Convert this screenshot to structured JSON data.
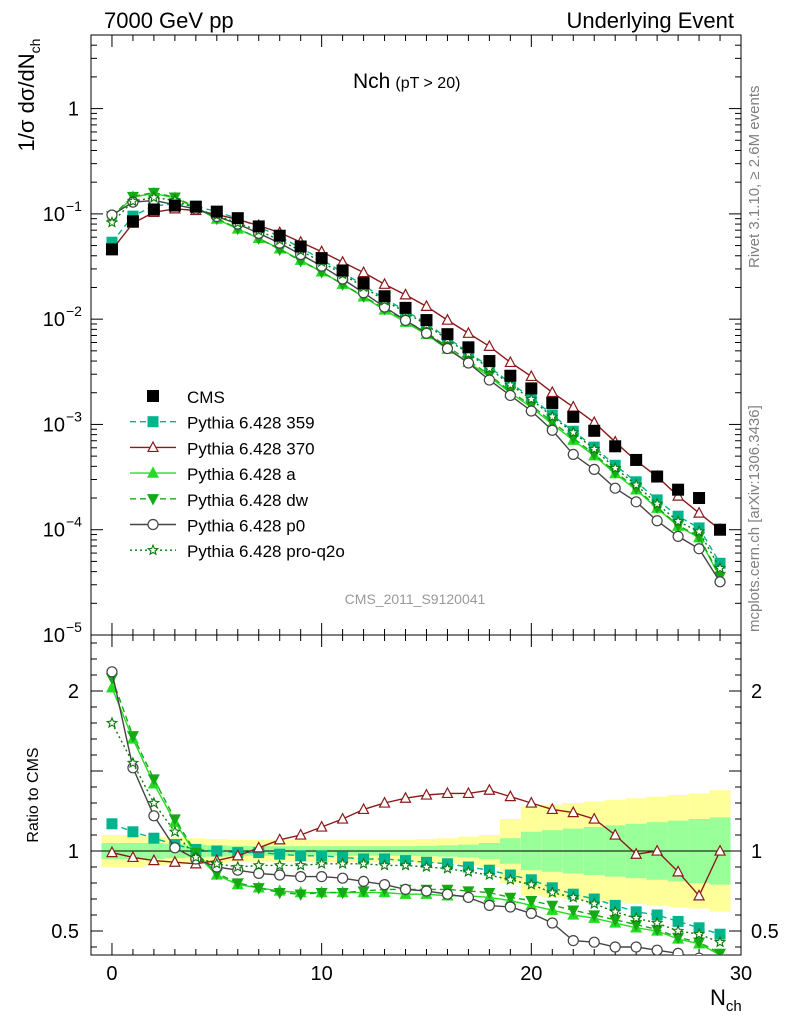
{
  "header": {
    "left": "7000 GeV pp",
    "right": "Underlying Event"
  },
  "side_text": {
    "rivet": "Rivet 3.1.10, ≥ 2.6M events",
    "mcplots": "mcplots.cern.ch [arXiv:1306.3436]"
  },
  "chart_data": {
    "type": "line",
    "title_main": "Nch",
    "title_sub": "(pT > 20)",
    "watermark": "CMS_2011_S9120041",
    "xlabel": "N",
    "xlabel_sub": "ch",
    "ylabel_main": "1/σ dσ/dN",
    "ylabel_sub": "ch",
    "ylabel_ratio": "Ratio to CMS",
    "log_y": true,
    "xlim": [
      -1,
      30
    ],
    "ylim_main": [
      1e-05,
      5
    ],
    "ylim_ratio": [
      0.35,
      2.35
    ],
    "x_ticks": [
      "0",
      "10",
      "20",
      "30"
    ],
    "y_ticks_main": [
      {
        "v": 1e-05,
        "m": "10",
        "e": "−5"
      },
      {
        "v": 0.0001,
        "m": "10",
        "e": "−4"
      },
      {
        "v": 0.001,
        "m": "10",
        "e": "−3"
      },
      {
        "v": 0.01,
        "m": "10",
        "e": "−2"
      },
      {
        "v": 0.1,
        "m": "10",
        "e": "−1"
      },
      {
        "v": 1,
        "m": "1",
        "e": ""
      }
    ],
    "y_ticks_ratio": [
      "0.5",
      "1",
      "2"
    ],
    "ratio_band": {
      "x": [
        -0.5,
        0.5,
        1.5,
        2.5,
        3.5,
        4.5,
        5.5,
        6.5,
        7.5,
        8.5,
        9.5,
        10.5,
        11.5,
        12.5,
        13.5,
        14.5,
        15.5,
        16.5,
        17.5,
        18.5,
        19.5,
        20.5,
        21.5,
        22.5,
        23.5,
        24.5,
        25.5,
        26.5,
        27.5,
        28.5,
        29.5
      ],
      "stat": [
        0.05,
        0.05,
        0.05,
        0.045,
        0.04,
        0.035,
        0.032,
        0.03,
        0.03,
        0.03,
        0.03,
        0.03,
        0.03,
        0.03,
        0.03,
        0.032,
        0.035,
        0.04,
        0.05,
        0.08,
        0.12,
        0.13,
        0.14,
        0.15,
        0.16,
        0.17,
        0.18,
        0.19,
        0.2,
        0.21
      ],
      "total": [
        0.1,
        0.1,
        0.09,
        0.085,
        0.08,
        0.075,
        0.07,
        0.07,
        0.07,
        0.07,
        0.07,
        0.07,
        0.07,
        0.07,
        0.07,
        0.075,
        0.08,
        0.09,
        0.1,
        0.2,
        0.28,
        0.29,
        0.3,
        0.31,
        0.32,
        0.33,
        0.34,
        0.35,
        0.36,
        0.38
      ]
    },
    "cms": {
      "name": "CMS",
      "x": [
        0,
        1,
        2,
        3,
        4,
        5,
        6,
        7,
        8,
        9,
        10,
        11,
        12,
        13,
        14,
        15,
        16,
        17,
        18,
        19,
        20,
        21,
        22,
        23,
        24,
        25,
        26,
        27,
        28,
        29
      ],
      "y": [
        0.046,
        0.085,
        0.11,
        0.12,
        0.117,
        0.105,
        0.091,
        0.076,
        0.062,
        0.049,
        0.038,
        0.029,
        0.022,
        0.0165,
        0.0128,
        0.0098,
        0.0072,
        0.0054,
        0.004,
        0.0029,
        0.0022,
        0.0016,
        0.00118,
        0.00087,
        0.00062,
        0.00046,
        0.00032,
        0.00024,
        0.0002,
        0.0001
      ]
    },
    "series": [
      {
        "name": "Pythia 6.428 359",
        "color": "#00b48c",
        "dash": "6,4",
        "marker": "square",
        "filled": true,
        "ratio": [
          1.17,
          1.12,
          1.08,
          1.04,
          1.01,
          1.0,
          0.99,
          0.99,
          0.98,
          0.97,
          0.97,
          0.96,
          0.95,
          0.95,
          0.94,
          0.93,
          0.92,
          0.9,
          0.88,
          0.85,
          0.82,
          0.77,
          0.73,
          0.7,
          0.66,
          0.62,
          0.6,
          0.56,
          0.52,
          0.48
        ]
      },
      {
        "name": "Pythia 6.428 370",
        "color": "#8b1a1a",
        "dash": "",
        "marker": "triangle",
        "filled": false,
        "ratio": [
          0.99,
          0.96,
          0.94,
          0.93,
          0.92,
          0.94,
          0.97,
          1.02,
          1.07,
          1.1,
          1.15,
          1.2,
          1.26,
          1.3,
          1.33,
          1.35,
          1.36,
          1.36,
          1.38,
          1.34,
          1.3,
          1.26,
          1.24,
          1.2,
          1.1,
          0.98,
          1.0,
          0.87,
          0.72,
          1.0
        ]
      },
      {
        "name": "Pythia 6.428 a",
        "color": "#22dd22",
        "dash": "",
        "marker": "triangle",
        "filled": true,
        "ratio": [
          2.02,
          1.7,
          1.42,
          1.18,
          0.98,
          0.85,
          0.79,
          0.77,
          0.75,
          0.74,
          0.74,
          0.74,
          0.74,
          0.74,
          0.73,
          0.73,
          0.72,
          0.72,
          0.71,
          0.69,
          0.66,
          0.63,
          0.6,
          0.58,
          0.55,
          0.52,
          0.5,
          0.45,
          0.42,
          0.35
        ]
      },
      {
        "name": "Pythia 6.428 dw",
        "color": "#15aa15",
        "dash": "6,4",
        "marker": "triangle-down",
        "filled": true,
        "ratio": [
          2.08,
          1.72,
          1.45,
          1.2,
          0.99,
          0.86,
          0.8,
          0.77,
          0.74,
          0.73,
          0.74,
          0.74,
          0.75,
          0.76,
          0.76,
          0.76,
          0.76,
          0.75,
          0.74,
          0.71,
          0.69,
          0.66,
          0.63,
          0.6,
          0.57,
          0.54,
          0.51,
          0.46,
          0.43,
          0.36
        ]
      },
      {
        "name": "Pythia 6.428 p0",
        "color": "#444444",
        "dash": "",
        "marker": "circle",
        "filled": false,
        "ratio": [
          2.12,
          1.52,
          1.22,
          1.02,
          0.95,
          0.9,
          0.88,
          0.86,
          0.85,
          0.84,
          0.84,
          0.83,
          0.81,
          0.79,
          0.76,
          0.75,
          0.73,
          0.71,
          0.66,
          0.65,
          0.61,
          0.55,
          0.44,
          0.43,
          0.4,
          0.4,
          0.38,
          0.36,
          0.33,
          0.32
        ]
      },
      {
        "name": "Pythia 6.428 pro-q2o",
        "color": "#0a7a0a",
        "dash": "2,3",
        "marker": "star",
        "filled": false,
        "ratio": [
          1.8,
          1.55,
          1.3,
          1.12,
          0.96,
          0.92,
          0.9,
          0.91,
          0.91,
          0.91,
          0.92,
          0.92,
          0.92,
          0.91,
          0.91,
          0.9,
          0.89,
          0.87,
          0.85,
          0.82,
          0.79,
          0.74,
          0.71,
          0.67,
          0.62,
          0.58,
          0.55,
          0.5,
          0.48,
          0.43
        ]
      }
    ]
  }
}
